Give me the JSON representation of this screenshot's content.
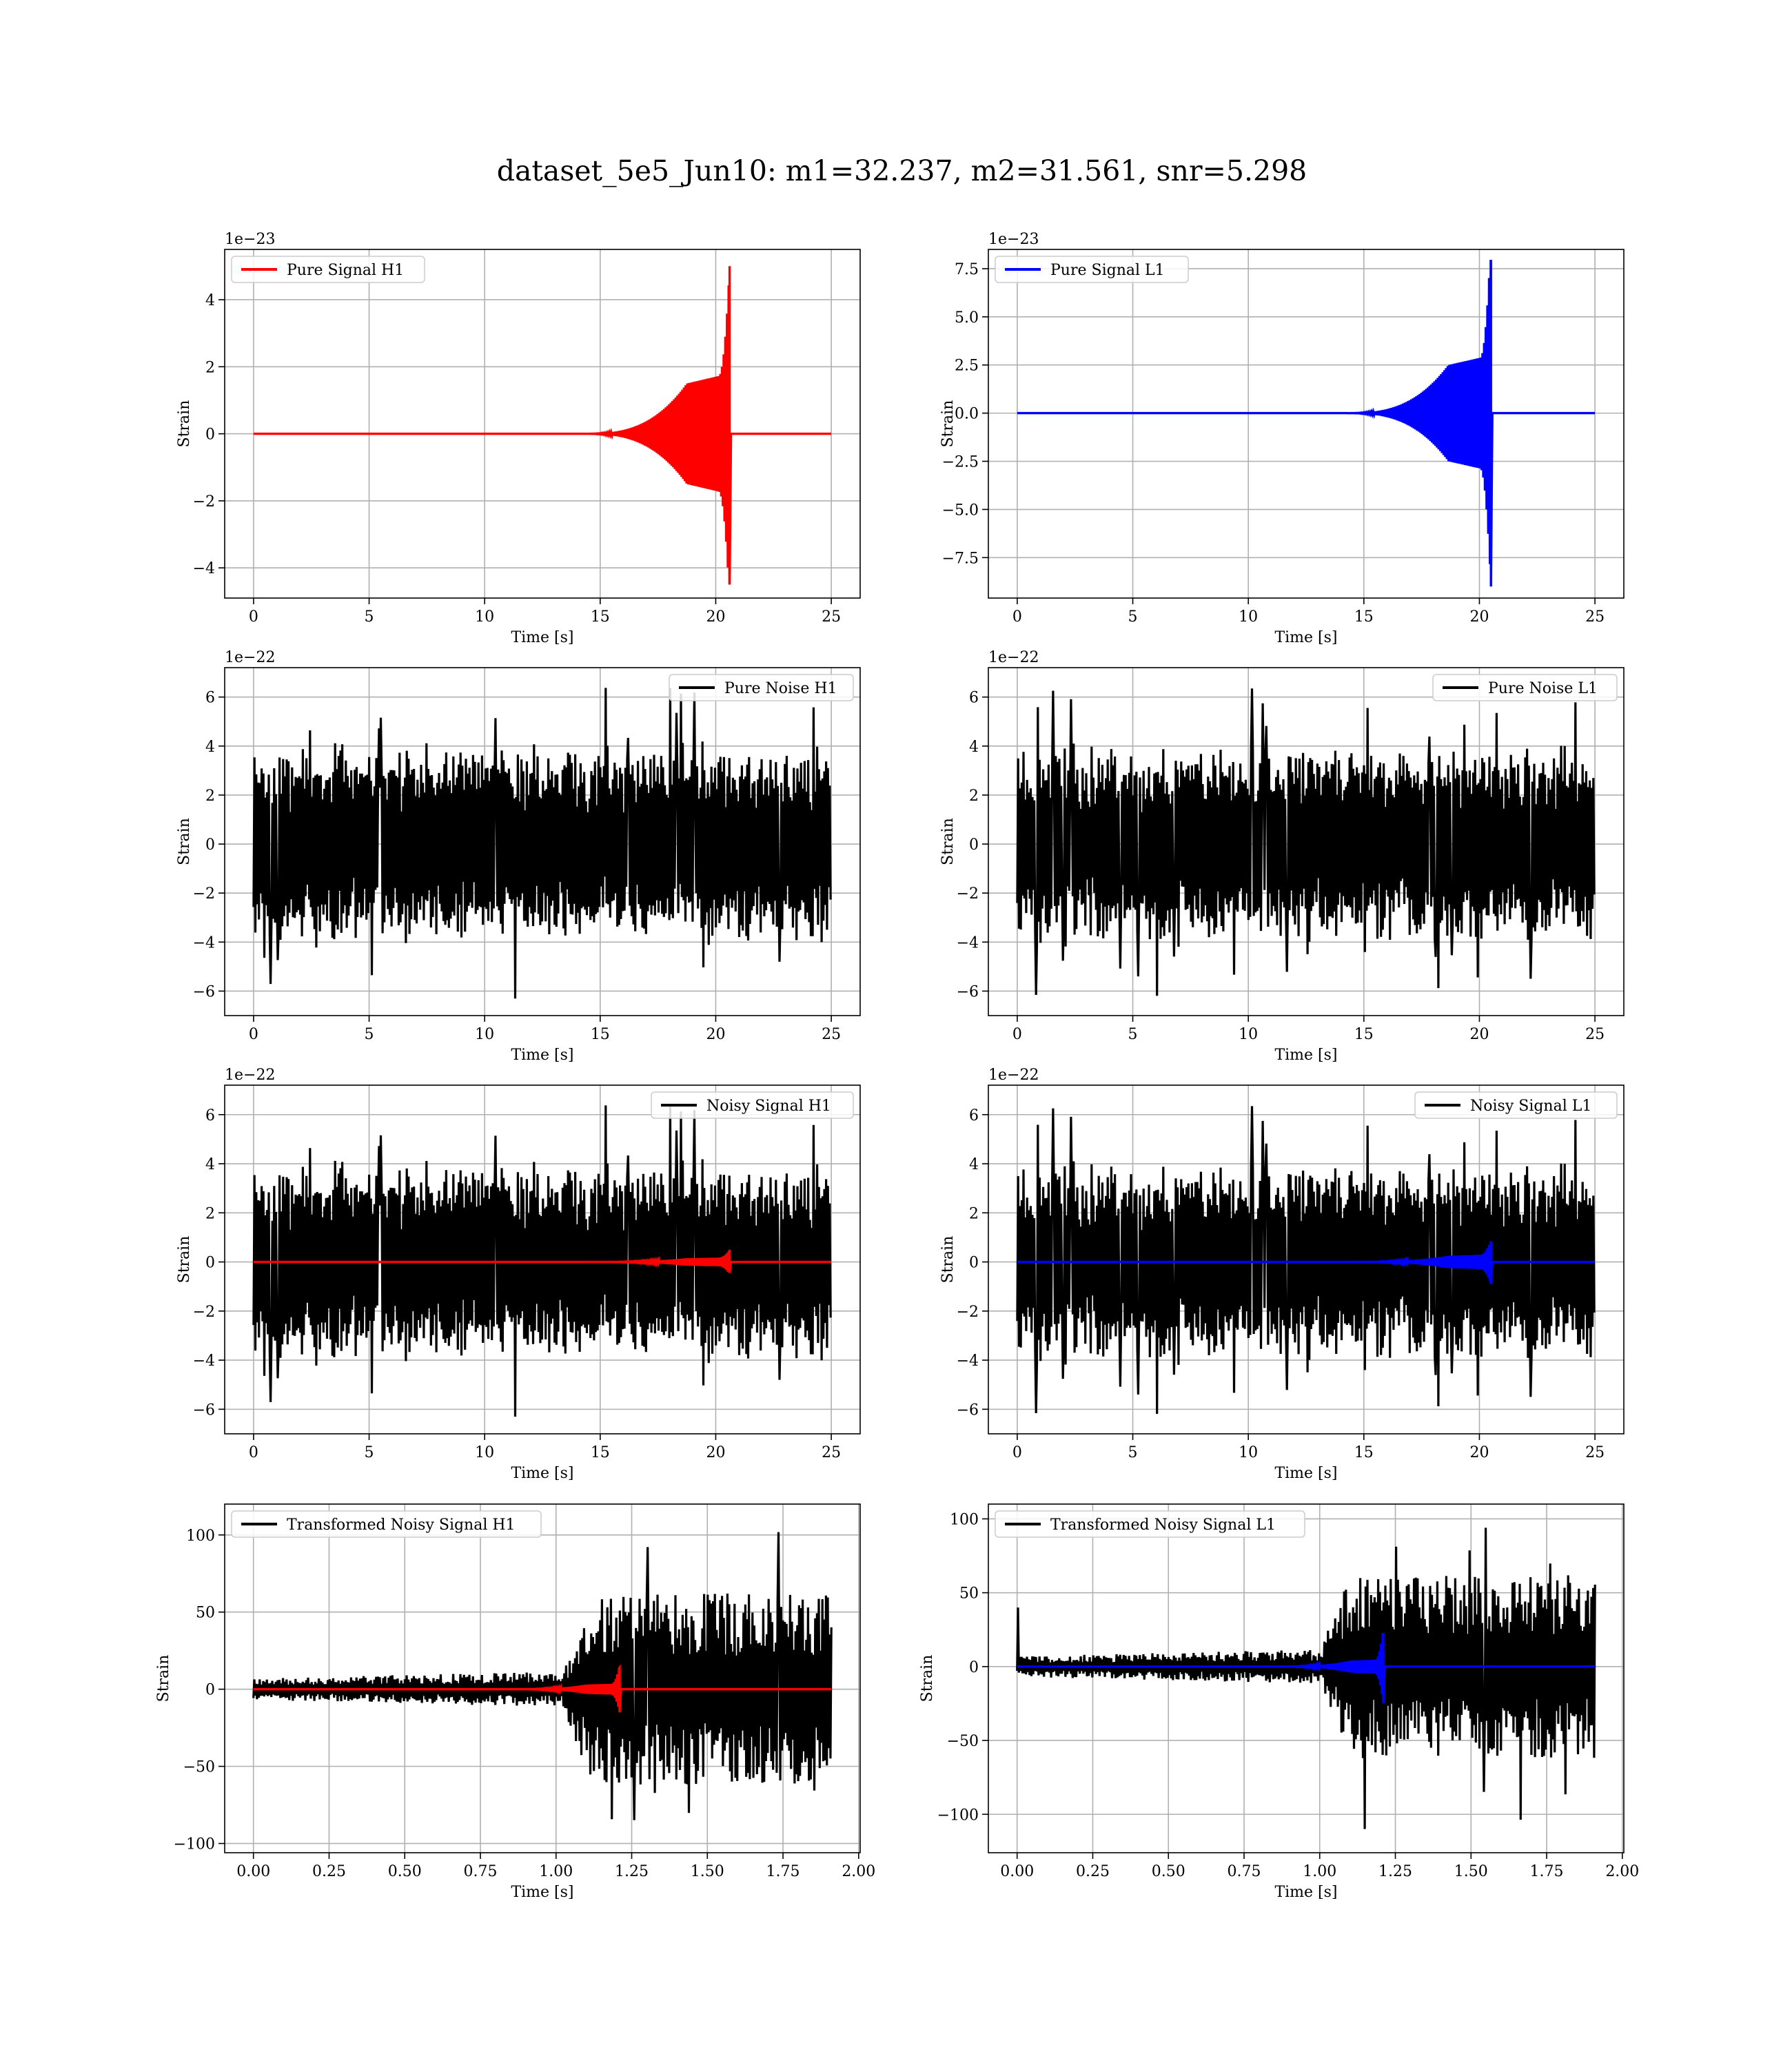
{
  "figure": {
    "title": "dataset_5e5_Jun10: m1=32.237, m2=31.561, snr=5.298",
    "colors": {
      "h1_signal": "#ff0000",
      "l1_signal": "#0000ff",
      "noise": "#000000",
      "grid": "#b0b0b0"
    }
  },
  "chart_data": [
    {
      "id": "pure-signal-h1",
      "type": "line",
      "xlabel": "Time [s]",
      "ylabel": "Strain",
      "offset_text": "1e−23",
      "xlim": [
        -1.25,
        26.25
      ],
      "ylim": [
        -4.9,
        5.5
      ],
      "xticks": [
        0,
        5,
        10,
        15,
        20,
        25
      ],
      "xtick_labels": [
        "0",
        "5",
        "10",
        "15",
        "20",
        "25"
      ],
      "yticks": [
        -4,
        -2,
        0,
        2,
        4
      ],
      "ytick_labels": [
        "−4",
        "−2",
        "0",
        "2",
        "4"
      ],
      "grid": true,
      "legend": "top-left",
      "series": [
        {
          "name": "Pure Signal H1",
          "kind": "chirp",
          "color": "#ff0000",
          "x_start": 0,
          "x_end": 25,
          "merger": 20.6,
          "amp_pos": 5.0,
          "amp_neg": 4.5,
          "plateau": 1.5
        }
      ]
    },
    {
      "id": "pure-signal-l1",
      "type": "line",
      "xlabel": "Time [s]",
      "ylabel": "Strain",
      "offset_text": "1e−23",
      "xlim": [
        -1.25,
        26.25
      ],
      "ylim": [
        -9.6,
        8.5
      ],
      "xticks": [
        0,
        5,
        10,
        15,
        20,
        25
      ],
      "xtick_labels": [
        "0",
        "5",
        "10",
        "15",
        "20",
        "25"
      ],
      "yticks": [
        -7.5,
        -5.0,
        -2.5,
        0.0,
        2.5,
        5.0,
        7.5
      ],
      "ytick_labels": [
        "−7.5",
        "−5.0",
        "−2.5",
        "0.0",
        "2.5",
        "5.0",
        "7.5"
      ],
      "grid": true,
      "legend": "top-left",
      "series": [
        {
          "name": "Pure Signal L1",
          "kind": "chirp",
          "color": "#0000ff",
          "x_start": 0,
          "x_end": 25,
          "merger": 20.5,
          "amp_pos": 7.9,
          "amp_neg": 9.0,
          "plateau": 2.5
        }
      ]
    },
    {
      "id": "pure-noise-h1",
      "type": "line",
      "xlabel": "Time [s]",
      "ylabel": "Strain",
      "offset_text": "1e−22",
      "xlim": [
        -1.25,
        26.25
      ],
      "ylim": [
        -7.0,
        7.2
      ],
      "xticks": [
        0,
        5,
        10,
        15,
        20,
        25
      ],
      "xtick_labels": [
        "0",
        "5",
        "10",
        "15",
        "20",
        "25"
      ],
      "yticks": [
        -6,
        -4,
        -2,
        0,
        2,
        4,
        6
      ],
      "ytick_labels": [
        "−6",
        "−4",
        "−2",
        "0",
        "2",
        "4",
        "6"
      ],
      "grid": true,
      "legend": "top-right",
      "series": [
        {
          "name": "Pure Noise H1",
          "kind": "noise",
          "color": "#000000",
          "x_start": 0,
          "x_end": 25,
          "band": 3.5,
          "max": 6.6,
          "min": -6.4,
          "seed": 11
        }
      ]
    },
    {
      "id": "pure-noise-l1",
      "type": "line",
      "xlabel": "Time [s]",
      "ylabel": "Strain",
      "offset_text": "1e−22",
      "xlim": [
        -1.25,
        26.25
      ],
      "ylim": [
        -7.0,
        7.2
      ],
      "xticks": [
        0,
        5,
        10,
        15,
        20,
        25
      ],
      "xtick_labels": [
        "0",
        "5",
        "10",
        "15",
        "20",
        "25"
      ],
      "yticks": [
        -6,
        -4,
        -2,
        0,
        2,
        4,
        6
      ],
      "ytick_labels": [
        "−6",
        "−4",
        "−2",
        "0",
        "2",
        "4",
        "6"
      ],
      "grid": true,
      "legend": "top-right",
      "series": [
        {
          "name": "Pure Noise L1",
          "kind": "noise",
          "color": "#000000",
          "x_start": 0,
          "x_end": 25,
          "band": 3.5,
          "max": 6.6,
          "min": -6.3,
          "seed": 23
        }
      ]
    },
    {
      "id": "noisy-signal-h1",
      "type": "line",
      "xlabel": "Time [s]",
      "ylabel": "Strain",
      "offset_text": "1e−22",
      "xlim": [
        -1.25,
        26.25
      ],
      "ylim": [
        -7.0,
        7.2
      ],
      "xticks": [
        0,
        5,
        10,
        15,
        20,
        25
      ],
      "xtick_labels": [
        "0",
        "5",
        "10",
        "15",
        "20",
        "25"
      ],
      "yticks": [
        -6,
        -4,
        -2,
        0,
        2,
        4,
        6
      ],
      "ytick_labels": [
        "−6",
        "−4",
        "−2",
        "0",
        "2",
        "4",
        "6"
      ],
      "grid": true,
      "legend": "top-right",
      "series": [
        {
          "name": "Noisy Signal H1",
          "kind": "noise",
          "color": "#000000",
          "x_start": 0,
          "x_end": 25,
          "band": 3.5,
          "max": 6.6,
          "min": -6.4,
          "seed": 11
        },
        {
          "kind": "chirp",
          "color": "#ff0000",
          "x_start": 0,
          "x_end": 25,
          "merger": 20.6,
          "amp_pos": 0.5,
          "amp_neg": 0.45,
          "plateau": 0.15
        }
      ]
    },
    {
      "id": "noisy-signal-l1",
      "type": "line",
      "xlabel": "Time [s]",
      "ylabel": "Strain",
      "offset_text": "1e−22",
      "xlim": [
        -1.25,
        26.25
      ],
      "ylim": [
        -7.0,
        7.2
      ],
      "xticks": [
        0,
        5,
        10,
        15,
        20,
        25
      ],
      "xtick_labels": [
        "0",
        "5",
        "10",
        "15",
        "20",
        "25"
      ],
      "yticks": [
        -6,
        -4,
        -2,
        0,
        2,
        4,
        6
      ],
      "ytick_labels": [
        "−6",
        "−4",
        "−2",
        "0",
        "2",
        "4",
        "6"
      ],
      "grid": true,
      "legend": "top-right",
      "series": [
        {
          "name": "Noisy Signal L1",
          "kind": "noise",
          "color": "#000000",
          "x_start": 0,
          "x_end": 25,
          "band": 3.5,
          "max": 6.6,
          "min": -6.3,
          "seed": 23
        },
        {
          "kind": "chirp",
          "color": "#0000ff",
          "x_start": 0,
          "x_end": 25,
          "merger": 20.5,
          "amp_pos": 0.8,
          "amp_neg": 0.9,
          "plateau": 0.25
        }
      ]
    },
    {
      "id": "transformed-noisy-signal-h1",
      "type": "line",
      "xlabel": "Time [s]",
      "ylabel": "Strain",
      "offset_text": "",
      "xlim": [
        -0.095,
        2.005
      ],
      "ylim": [
        -106,
        120
      ],
      "xticks": [
        0,
        0.25,
        0.5,
        0.75,
        1.0,
        1.25,
        1.5,
        1.75,
        2.0
      ],
      "xtick_labels": [
        "0.00",
        "0.25",
        "0.50",
        "0.75",
        "1.00",
        "1.25",
        "1.50",
        "1.75",
        "2.00"
      ],
      "yticks": [
        -100,
        -50,
        0,
        50,
        100
      ],
      "ytick_labels": [
        "−100",
        "−50",
        "0",
        "50",
        "100"
      ],
      "grid": true,
      "legend": "top-left",
      "series": [
        {
          "name": "Transformed Noisy Signal H1",
          "kind": "whitened",
          "color": "#000000",
          "x_start": 0,
          "x_end": 1.91,
          "early": 10,
          "rise": 1.12,
          "late": 62,
          "max": 110,
          "min": -96,
          "seed": 5
        },
        {
          "kind": "chirp",
          "color": "#ff0000",
          "x_start": 0,
          "x_end": 1.91,
          "merger": 1.21,
          "amp_pos": 14,
          "amp_neg": 15,
          "plateau": 3
        }
      ]
    },
    {
      "id": "transformed-noisy-signal-l1",
      "type": "line",
      "xlabel": "Time [s]",
      "ylabel": "Strain",
      "offset_text": "",
      "xlim": [
        -0.095,
        2.005
      ],
      "ylim": [
        -126,
        110
      ],
      "xticks": [
        0,
        0.25,
        0.5,
        0.75,
        1.0,
        1.25,
        1.5,
        1.75,
        2.0
      ],
      "xtick_labels": [
        "0.00",
        "0.25",
        "0.50",
        "0.75",
        "1.00",
        "1.25",
        "1.50",
        "1.75",
        "2.00"
      ],
      "yticks": [
        -100,
        -50,
        0,
        50,
        100
      ],
      "ytick_labels": [
        "−100",
        "−50",
        "0",
        "50",
        "100"
      ],
      "grid": true,
      "legend": "top-left",
      "series": [
        {
          "name": "Transformed Noisy Signal L1",
          "kind": "whitened",
          "color": "#000000",
          "x_start": 0,
          "x_end": 1.91,
          "early": 10,
          "rise": 1.1,
          "late": 62,
          "max": 101,
          "min": -115,
          "spike_start": 40,
          "seed": 9
        },
        {
          "kind": "chirp",
          "color": "#0000ff",
          "x_start": 0,
          "x_end": 1.91,
          "merger": 1.21,
          "amp_pos": 22,
          "amp_neg": 25,
          "plateau": 4
        }
      ]
    }
  ]
}
